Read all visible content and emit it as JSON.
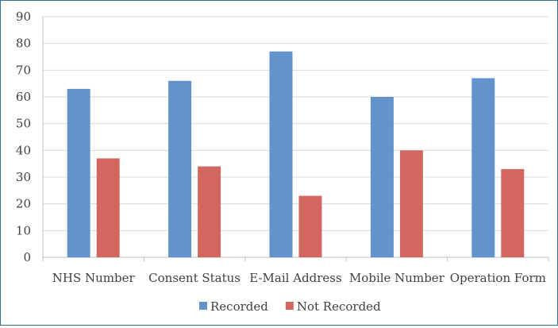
{
  "chart_data": {
    "type": "bar",
    "title": "",
    "xlabel": "",
    "ylabel": "",
    "categories": [
      "NHS Number",
      "Consent Status",
      "E-Mail Address",
      "Mobile Number",
      "Operation Form"
    ],
    "series": [
      {
        "name": "Recorded",
        "values": [
          63,
          66,
          77,
          60,
          67
        ],
        "color": "#6294cb"
      },
      {
        "name": "Not Recorded",
        "values": [
          37,
          34,
          23,
          40,
          33
        ],
        "color": "#d26760"
      }
    ],
    "ylim": [
      0,
      90
    ],
    "yticks": [
      0,
      10,
      20,
      30,
      40,
      50,
      60,
      70,
      80,
      90
    ],
    "grid": true,
    "legend_position": "bottom"
  }
}
